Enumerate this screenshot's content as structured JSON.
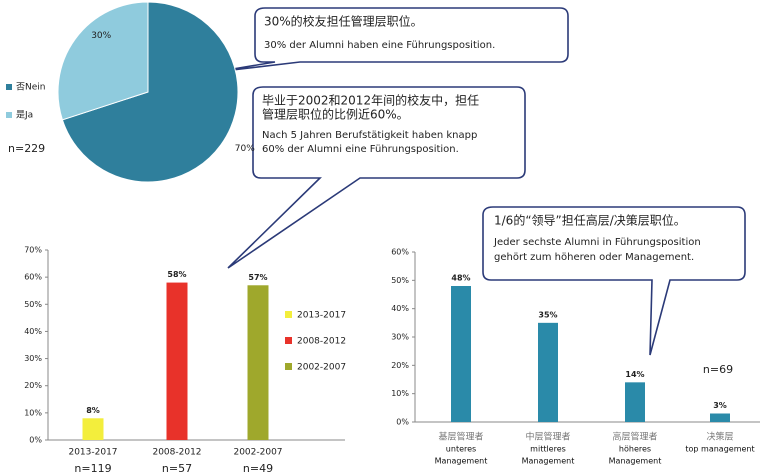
{
  "chart_data": [
    {
      "type": "pie",
      "categories": [
        "否Nein",
        "是Ja"
      ],
      "values": [
        70,
        30
      ],
      "value_labels": [
        "70%",
        "30%"
      ],
      "colors": [
        "#2f7f9c",
        "#8fcbdd"
      ],
      "legend": "left",
      "note": "n=229"
    },
    {
      "type": "bar",
      "categories": [
        "2013-2017",
        "2008-2012",
        "2002-2007"
      ],
      "values": [
        8,
        58,
        57
      ],
      "value_labels": [
        "8%",
        "58%",
        "57%"
      ],
      "colors": [
        "#f3ee3c",
        "#e8322a",
        "#9fa82c"
      ],
      "notes": [
        "n=119",
        "n=57",
        "n=49"
      ],
      "ylim": [
        0,
        70
      ],
      "yticks": [
        {
          "value": 0,
          "label": "0%"
        },
        {
          "value": 10,
          "label": "10%"
        },
        {
          "value": 20,
          "label": "20%"
        },
        {
          "value": 30,
          "label": "30%"
        },
        {
          "value": 40,
          "label": "40%"
        },
        {
          "value": 50,
          "label": "50%"
        },
        {
          "value": 60,
          "label": "60%"
        },
        {
          "value": 70,
          "label": "70%"
        }
      ],
      "grid": false,
      "legend": "right"
    },
    {
      "type": "bar",
      "categories": [
        [
          "基层管理者",
          "unteres",
          "Management"
        ],
        [
          "中层管理者",
          "mittleres",
          "Management"
        ],
        [
          "高层管理者",
          "höheres",
          "Management"
        ],
        [
          "决策层",
          "top management"
        ]
      ],
      "values": [
        48,
        35,
        14,
        3
      ],
      "value_labels": [
        "48%",
        "35%",
        "14%",
        "3%"
      ],
      "color": "#2a8aa9",
      "note": "n=69",
      "ylim": [
        0,
        60
      ],
      "yticks": [
        {
          "value": 0,
          "label": "0%"
        },
        {
          "value": 10,
          "label": "10%"
        },
        {
          "value": 20,
          "label": "20%"
        },
        {
          "value": 30,
          "label": "30%"
        },
        {
          "value": 40,
          "label": "40%"
        },
        {
          "value": 50,
          "label": "50%"
        },
        {
          "value": 60,
          "label": "60%"
        }
      ],
      "grid": false
    }
  ],
  "callouts": [
    {
      "lines": [
        "30%的校友担任管理层职位。",
        "30% der Alumni haben eine Führungsposition."
      ]
    },
    {
      "lines": [
        "毕业于2002和2012年间的校友中，担任",
        "管理层职位的比例近60%。",
        "Nach 5 Jahren Berufstätigkeit haben knapp",
        "60% der  Alumni eine Führungsposition."
      ]
    },
    {
      "lines": [
        "1/6的“领导”担任高层/决策层职位。",
        "Jeder sechste Alumni in Führungsposition",
        "gehört zum höheren oder Management."
      ]
    }
  ]
}
